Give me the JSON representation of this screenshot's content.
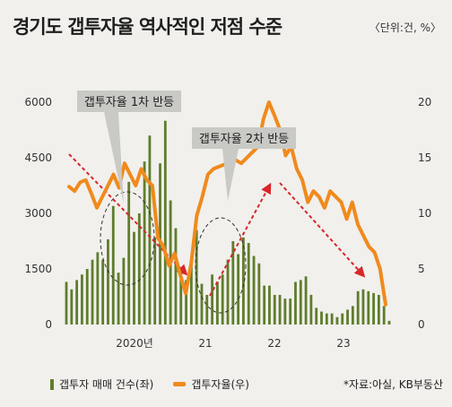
{
  "title": "경기도 갭투자율 역사적인 저점 수준",
  "unit_label": "〈단위:건, %〉",
  "legend": {
    "bar_label": "갭투자 매매 건수(좌)",
    "line_label": "갭투자율(우)"
  },
  "source": "*자료:아실, KB부동산",
  "annotations": {
    "first_rebound": "갭투자율 1차 반등",
    "second_rebound": "갭투자율 2차 반등"
  },
  "colors": {
    "bar": "#5f7d2c",
    "line": "#f08a1c",
    "arrow": "#d9262a",
    "background": "#f1f0ed"
  },
  "chart_data": {
    "type": "bar+line",
    "x_tick_labels": [
      "2020년",
      "21",
      "22",
      "23"
    ],
    "y_left": {
      "ticks": [
        0,
        1500,
        3000,
        4500,
        6000
      ],
      "range": [
        0,
        6000
      ]
    },
    "y_right": {
      "ticks": [
        0,
        5,
        10,
        15,
        20
      ],
      "range": [
        0,
        20
      ]
    },
    "series": [
      {
        "name": "갭투자 매매 건수(좌)",
        "axis": "left",
        "type": "bar",
        "values": [
          1150,
          950,
          1200,
          1350,
          1500,
          1750,
          1950,
          1750,
          2300,
          3200,
          1400,
          1800,
          3850,
          2500,
          3000,
          4400,
          5100,
          2350,
          4350,
          5500,
          3350,
          2600,
          1500,
          1200,
          1800,
          2550,
          1100,
          800,
          1350,
          1150,
          1350,
          1750,
          2250,
          1900,
          2350,
          2200,
          1850,
          1650,
          1050,
          1050,
          800,
          800,
          700,
          700,
          1150,
          1200,
          1300,
          800,
          450,
          350,
          300,
          300,
          200,
          300,
          400,
          500,
          900,
          950,
          900,
          850,
          800,
          500,
          100
        ]
      },
      {
        "name": "갭투자율(우)",
        "axis": "right",
        "type": "line",
        "values": [
          12.4,
          12.0,
          12.8,
          13.0,
          11.8,
          10.5,
          11.5,
          12.5,
          13.5,
          12.3,
          14.5,
          13.5,
          12.5,
          14.0,
          13.0,
          12.5,
          7.8,
          7.0,
          5.3,
          6.4,
          4.5,
          2.8,
          5.5,
          9.8,
          11.5,
          13.5,
          14.0,
          14.2,
          14.4,
          14.5,
          14.8,
          14.5,
          15.0,
          15.5,
          16.0,
          18.5,
          20.0,
          18.8,
          17.5,
          15.2,
          16.0,
          14.0,
          13.0,
          11.0,
          12.0,
          11.5,
          10.5,
          12.0,
          11.5,
          11.0,
          9.5,
          11.0,
          9.0,
          8.0,
          7.0,
          6.5,
          5.0,
          1.8
        ]
      }
    ],
    "grid": false,
    "legend_position": "bottom-left"
  }
}
